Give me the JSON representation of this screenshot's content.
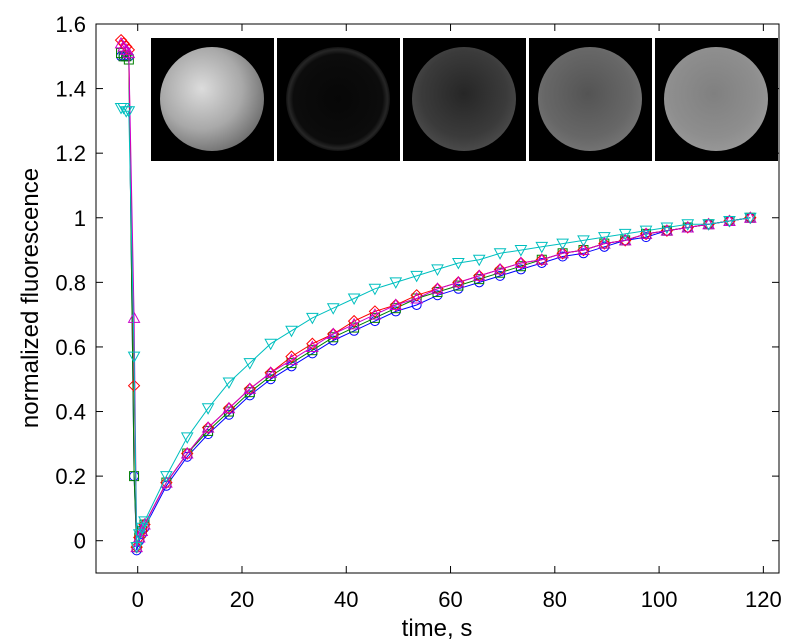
{
  "chart_data": {
    "type": "line",
    "xlabel": "time, s",
    "ylabel": "normalized fluorescence",
    "xlim": [
      -8,
      123
    ],
    "ylim": [
      -0.1,
      1.6
    ],
    "xticks": [
      0,
      20,
      40,
      60,
      80,
      100,
      120
    ],
    "yticks": [
      0,
      0.2,
      0.4,
      0.6,
      0.8,
      1,
      1.2,
      1.4,
      1.6
    ],
    "xtick_labels": [
      "0",
      "20",
      "40",
      "60",
      "80",
      "100",
      "120"
    ],
    "ytick_labels": [
      "0",
      "0.2",
      "0.4",
      "0.6",
      "0.8",
      "1",
      "1.2",
      "1.4",
      "1.6"
    ],
    "grid": false,
    "legend": "none",
    "series": [
      {
        "color": "#0000ff",
        "marker": "circle",
        "x": [
          -3.2,
          -2.7,
          -2.2,
          -1.7,
          -0.7,
          -0.2,
          0.3,
          0.8,
          1.3,
          5.5,
          9.5,
          13.5,
          17.5,
          21.5,
          25.5,
          29.5,
          33.5,
          37.5,
          41.5,
          45.5,
          49.5,
          53.5,
          57.5,
          61.5,
          65.5,
          69.5,
          73.5,
          77.5,
          81.5,
          85.5,
          89.5,
          93.5,
          97.5,
          101.5,
          105.5,
          109.5,
          113.5,
          117.5
        ],
        "y": [
          1.5,
          1.5,
          1.5,
          1.5,
          0.2,
          -0.03,
          0.0,
          0.02,
          0.04,
          0.17,
          0.26,
          0.33,
          0.39,
          0.45,
          0.5,
          0.54,
          0.58,
          0.62,
          0.65,
          0.68,
          0.71,
          0.73,
          0.76,
          0.78,
          0.8,
          0.82,
          0.84,
          0.86,
          0.88,
          0.89,
          0.91,
          0.93,
          0.94,
          0.96,
          0.97,
          0.98,
          0.99,
          1.0
        ]
      },
      {
        "color": "#008000",
        "marker": "square",
        "x": [
          -3.2,
          -2.7,
          -2.2,
          -1.7,
          -0.7,
          -0.2,
          0.3,
          0.8,
          1.3,
          5.5,
          9.5,
          13.5,
          17.5,
          21.5,
          25.5,
          29.5,
          33.5,
          37.5,
          41.5,
          45.5,
          49.5,
          53.5,
          57.5,
          61.5,
          65.5,
          69.5,
          73.5,
          77.5,
          81.5,
          85.5,
          89.5,
          93.5,
          97.5,
          101.5,
          105.5,
          109.5,
          113.5,
          117.5
        ],
        "y": [
          1.51,
          1.5,
          1.5,
          1.49,
          0.2,
          -0.02,
          0.01,
          0.03,
          0.05,
          0.18,
          0.27,
          0.34,
          0.4,
          0.46,
          0.51,
          0.55,
          0.59,
          0.63,
          0.66,
          0.69,
          0.72,
          0.75,
          0.77,
          0.79,
          0.81,
          0.83,
          0.85,
          0.87,
          0.89,
          0.9,
          0.92,
          0.93,
          0.95,
          0.96,
          0.97,
          0.98,
          0.99,
          1.0
        ]
      },
      {
        "color": "#ff0000",
        "marker": "diamond",
        "x": [
          -3.2,
          -2.7,
          -2.2,
          -1.7,
          -0.7,
          -0.2,
          0.3,
          0.8,
          1.3,
          5.5,
          9.5,
          13.5,
          17.5,
          21.5,
          25.5,
          29.5,
          33.5,
          37.5,
          41.5,
          45.5,
          49.5,
          53.5,
          57.5,
          61.5,
          65.5,
          69.5,
          73.5,
          77.5,
          81.5,
          85.5,
          89.5,
          93.5,
          97.5,
          101.5,
          105.5,
          109.5,
          113.5,
          117.5
        ],
        "y": [
          1.55,
          1.54,
          1.53,
          1.52,
          0.48,
          -0.02,
          0.01,
          0.03,
          0.05,
          0.18,
          0.27,
          0.35,
          0.41,
          0.47,
          0.52,
          0.57,
          0.61,
          0.64,
          0.68,
          0.71,
          0.73,
          0.76,
          0.78,
          0.8,
          0.82,
          0.84,
          0.86,
          0.87,
          0.89,
          0.9,
          0.92,
          0.93,
          0.95,
          0.96,
          0.97,
          0.98,
          0.99,
          1.0
        ]
      },
      {
        "color": "#cc00cc",
        "marker": "triangle-up",
        "x": [
          -3.2,
          -2.7,
          -2.2,
          -1.7,
          -0.7,
          -0.2,
          0.3,
          0.8,
          1.3,
          5.5,
          9.5,
          13.5,
          17.5,
          21.5,
          25.5,
          29.5,
          33.5,
          37.5,
          41.5,
          45.5,
          49.5,
          53.5,
          57.5,
          61.5,
          65.5,
          69.5,
          73.5,
          77.5,
          81.5,
          85.5,
          89.5,
          93.5,
          97.5,
          101.5,
          105.5,
          109.5,
          113.5,
          117.5
        ],
        "y": [
          1.54,
          1.53,
          1.52,
          1.51,
          0.69,
          -0.02,
          0.01,
          0.03,
          0.05,
          0.18,
          0.27,
          0.35,
          0.41,
          0.47,
          0.52,
          0.56,
          0.6,
          0.64,
          0.67,
          0.7,
          0.73,
          0.75,
          0.78,
          0.8,
          0.82,
          0.84,
          0.86,
          0.87,
          0.89,
          0.9,
          0.92,
          0.93,
          0.95,
          0.96,
          0.97,
          0.98,
          0.99,
          1.0
        ]
      },
      {
        "color": "#00bfbf",
        "marker": "triangle-down",
        "x": [
          -3.2,
          -2.7,
          -2.2,
          -1.7,
          -0.7,
          -0.2,
          0.3,
          0.8,
          1.3,
          5.5,
          9.5,
          13.5,
          17.5,
          21.5,
          25.5,
          29.5,
          33.5,
          37.5,
          41.5,
          45.5,
          49.5,
          53.5,
          57.5,
          61.5,
          65.5,
          69.5,
          73.5,
          77.5,
          81.5,
          85.5,
          89.5,
          93.5,
          97.5,
          101.5,
          105.5,
          109.5,
          113.5,
          117.5
        ],
        "y": [
          1.34,
          1.34,
          1.33,
          1.33,
          0.57,
          -0.02,
          0.02,
          0.04,
          0.06,
          0.2,
          0.32,
          0.41,
          0.49,
          0.55,
          0.61,
          0.65,
          0.69,
          0.72,
          0.75,
          0.78,
          0.8,
          0.82,
          0.84,
          0.86,
          0.87,
          0.89,
          0.9,
          0.91,
          0.92,
          0.93,
          0.94,
          0.95,
          0.96,
          0.97,
          0.98,
          0.98,
          0.99,
          1.0
        ]
      }
    ]
  },
  "inset_images": [
    {
      "brightness": "bright"
    },
    {
      "brightness": "dark"
    },
    {
      "brightness": "dim"
    },
    {
      "brightness": "medium"
    },
    {
      "brightness": "medium-bright"
    }
  ]
}
